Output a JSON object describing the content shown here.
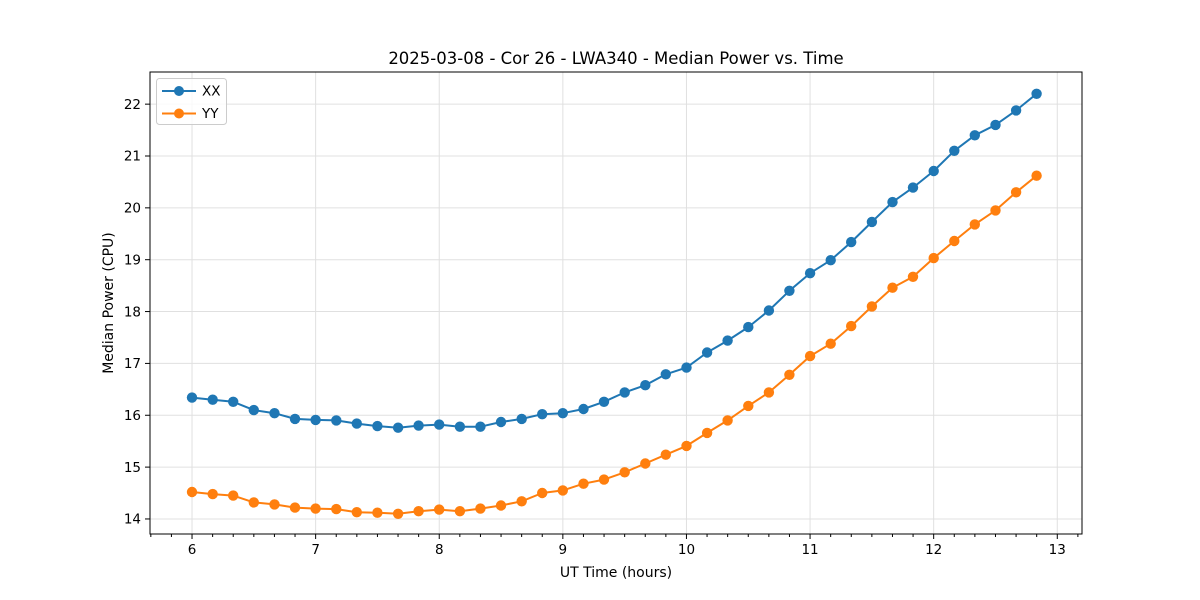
{
  "figure": {
    "background": "#ffffff"
  },
  "chart_data": {
    "type": "line",
    "title": "2025-03-08 - Cor 26 - LWA340 - Median Power vs. Time",
    "xlabel": "UT Time (hours)",
    "ylabel": "Median Power (CPU)",
    "xlim": [
      5.66,
      13.2
    ],
    "ylim": [
      13.71,
      22.62
    ],
    "xticks": [
      6,
      7,
      8,
      9,
      10,
      11,
      12,
      13
    ],
    "yticks": [
      14,
      15,
      16,
      17,
      18,
      19,
      20,
      21,
      22
    ],
    "x_minor_tick_step": 0.1667,
    "grid": true,
    "grid_color": "#e0e0e0",
    "legend_position": "upper left",
    "x": [
      6.0,
      6.167,
      6.333,
      6.5,
      6.667,
      6.833,
      7.0,
      7.167,
      7.333,
      7.5,
      7.667,
      7.833,
      8.0,
      8.167,
      8.333,
      8.5,
      8.667,
      8.833,
      9.0,
      9.167,
      9.333,
      9.5,
      9.667,
      9.833,
      10.0,
      10.167,
      10.333,
      10.5,
      10.667,
      10.833,
      11.0,
      11.167,
      11.333,
      11.5,
      11.667,
      11.833,
      12.0,
      12.167,
      12.333,
      12.5,
      12.667,
      12.833
    ],
    "series": [
      {
        "name": "XX",
        "color": "#1f77b4",
        "values": [
          16.34,
          16.3,
          16.26,
          16.1,
          16.04,
          15.93,
          15.91,
          15.9,
          15.84,
          15.79,
          15.76,
          15.8,
          15.82,
          15.78,
          15.78,
          15.87,
          15.93,
          16.02,
          16.04,
          16.12,
          16.26,
          16.44,
          16.58,
          16.79,
          16.92,
          17.21,
          17.44,
          17.7,
          18.02,
          18.4,
          18.74,
          18.99,
          19.34,
          19.73,
          20.11,
          20.39,
          20.71,
          21.1,
          21.4,
          21.6,
          21.88,
          22.2
        ]
      },
      {
        "name": "YY",
        "color": "#ff7f0e",
        "values": [
          14.52,
          14.48,
          14.45,
          14.32,
          14.28,
          14.22,
          14.2,
          14.19,
          14.13,
          14.12,
          14.1,
          14.15,
          14.18,
          14.15,
          14.2,
          14.26,
          14.34,
          14.5,
          14.55,
          14.68,
          14.76,
          14.9,
          15.07,
          15.24,
          15.41,
          15.66,
          15.9,
          16.18,
          16.44,
          16.78,
          17.14,
          17.38,
          17.72,
          18.1,
          18.46,
          18.67,
          19.03,
          19.36,
          19.68,
          19.95,
          20.3,
          20.62
        ]
      }
    ]
  }
}
